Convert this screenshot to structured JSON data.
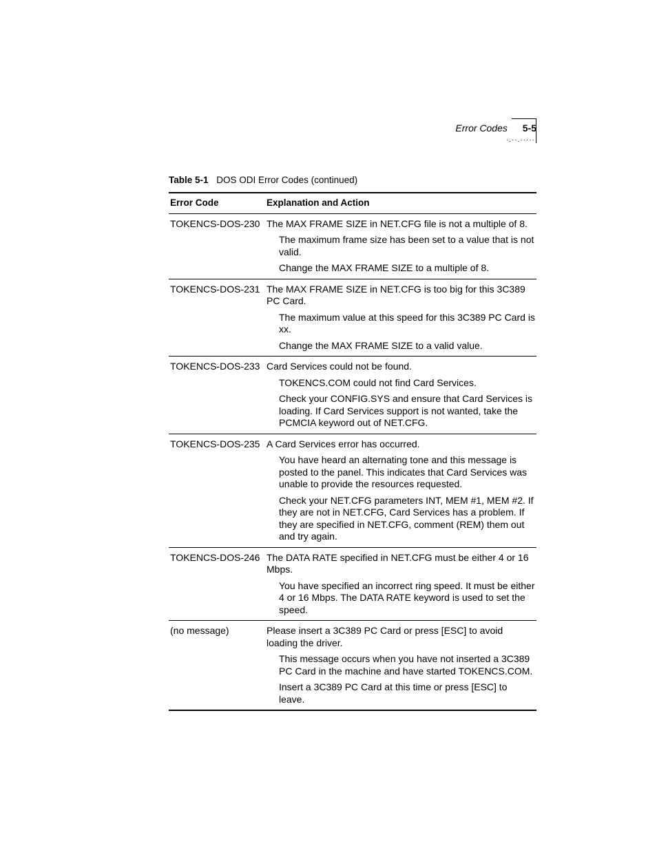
{
  "header": {
    "section_title": "Error Codes",
    "page_number": "5-5",
    "dots": "·.··.·····"
  },
  "table": {
    "caption_label": "Table 5-1",
    "caption_text": "DOS ODI Error Codes (continued)",
    "columns": {
      "code": "Error Code",
      "explanation": "Explanation and Action"
    },
    "rows": [
      {
        "code": "TOKENCS-DOS-230",
        "main": "The MAX FRAME SIZE in NET.CFG file is not a multiple of 8.",
        "subs": [
          "The maximum frame size has been set to a value that is not valid.",
          "Change the MAX FRAME SIZE to a multiple of 8."
        ]
      },
      {
        "code": "TOKENCS-DOS-231",
        "main": "The MAX FRAME SIZE in NET.CFG is too big for this 3C389 PC Card.",
        "subs": [
          "The maximum value at this speed for this 3C389 PC Card is xx.",
          "Change the MAX FRAME SIZE to a valid value."
        ]
      },
      {
        "code": "TOKENCS-DOS-233",
        "main": "Card Services could not be found.",
        "subs": [
          "TOKENCS.COM could not find Card Services.",
          "Check your CONFIG.SYS and ensure that Card Services is loading. If Card Services support is not wanted, take the PCMCIA keyword out of NET.CFG."
        ]
      },
      {
        "code": "TOKENCS-DOS-235",
        "main": "A Card Services error has occurred.",
        "subs": [
          "You have heard an alternating tone and this message is posted to the panel. This indicates that Card Services was unable to provide the resources requested.",
          "Check your NET.CFG parameters INT, MEM #1, MEM #2. If they are not in NET.CFG, Card Services has a problem. If they are specified in NET.CFG, comment (REM) them out and try again."
        ]
      },
      {
        "code": "TOKENCS-DOS-246",
        "main": "The DATA RATE specified in NET.CFG must be either 4 or 16 Mbps.",
        "subs": [
          "You have specified an incorrect ring speed. It must be either 4 or 16 Mbps. The DATA RATE keyword is used to set the speed."
        ]
      },
      {
        "code": "(no message)",
        "main": "Please insert a 3C389 PC Card or press [ESC] to avoid loading the driver.",
        "subs": [
          "This message occurs when you have not inserted a 3C389 PC Card in the machine and have started TOKENCS.COM.",
          "Insert a 3C389 PC Card at this time or press [ESC] to leave."
        ]
      }
    ]
  }
}
